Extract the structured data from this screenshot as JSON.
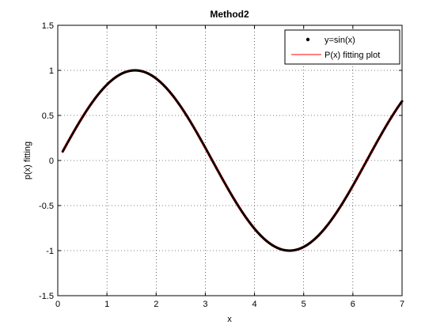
{
  "chart_data": {
    "type": "scatter",
    "title": "Method2",
    "xlabel": "x",
    "ylabel": "p(x) fitting",
    "xlim": [
      0,
      7
    ],
    "ylim": [
      -1.5,
      1.5
    ],
    "xticks": [
      0,
      1,
      2,
      3,
      4,
      5,
      6,
      7
    ],
    "xtick_labels": [
      "0",
      "1",
      "2",
      "3",
      "4",
      "5",
      "6",
      "7"
    ],
    "yticks": [
      -1.5,
      -1,
      -0.5,
      0,
      0.5,
      1,
      1.5
    ],
    "ytick_labels": [
      "-1.5",
      "-1",
      "-0.5",
      "0",
      "0.5",
      "1",
      "1.5"
    ],
    "grid": true,
    "legend_position": "top-right",
    "series": [
      {
        "name": "y=sin(x)",
        "type": "scatter",
        "marker": "dot",
        "color": "#000000",
        "function": "sin(x)",
        "x_range": [
          0.1,
          7.0
        ]
      },
      {
        "name": "P(x) fitting plot",
        "type": "line",
        "color": "#ff0000",
        "x_range": [
          0.1,
          7.0
        ]
      }
    ]
  }
}
